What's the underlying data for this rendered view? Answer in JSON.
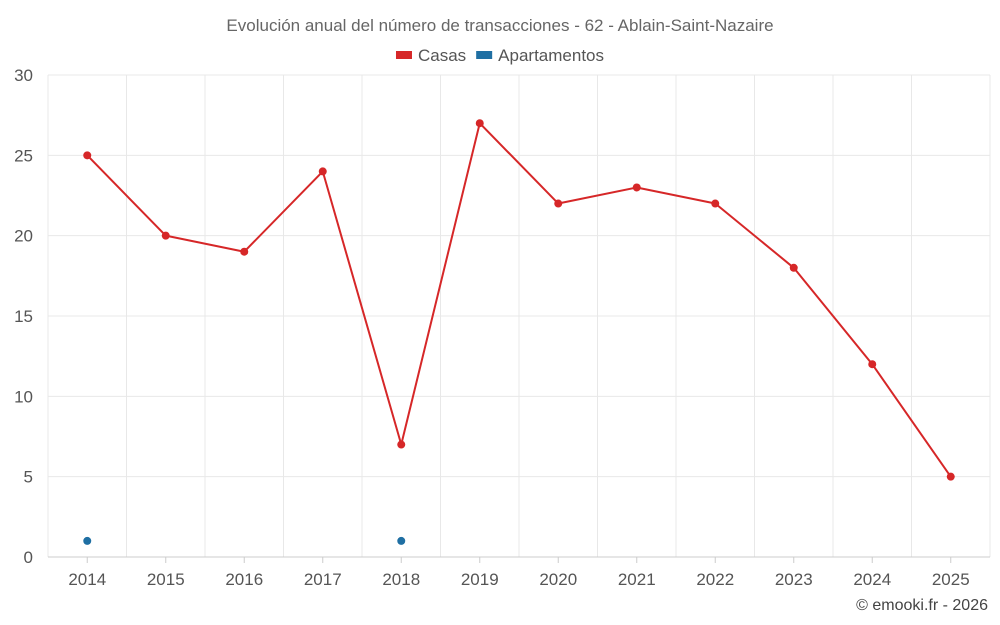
{
  "chart_data": {
    "type": "line",
    "title": "Evolución anual del número de transacciones - 62 - Ablain-Saint-Nazaire",
    "credit": "© emooki.fr - 2026",
    "categories": [
      "2014",
      "2015",
      "2016",
      "2017",
      "2018",
      "2019",
      "2020",
      "2021",
      "2022",
      "2023",
      "2024",
      "2025"
    ],
    "ylim": [
      0,
      30
    ],
    "yticks": [
      0,
      5,
      10,
      15,
      20,
      25,
      30
    ],
    "grid": true,
    "legend_position": "top-center",
    "series": [
      {
        "name": "Casas",
        "color": "#d62728",
        "line": true,
        "values": [
          25,
          20,
          19,
          24,
          7,
          27,
          22,
          23,
          22,
          18,
          12,
          5
        ]
      },
      {
        "name": "Apartamentos",
        "color": "#1f6fa3",
        "line": false,
        "values": [
          1,
          null,
          null,
          null,
          1,
          null,
          null,
          null,
          null,
          null,
          null,
          null
        ]
      }
    ]
  }
}
